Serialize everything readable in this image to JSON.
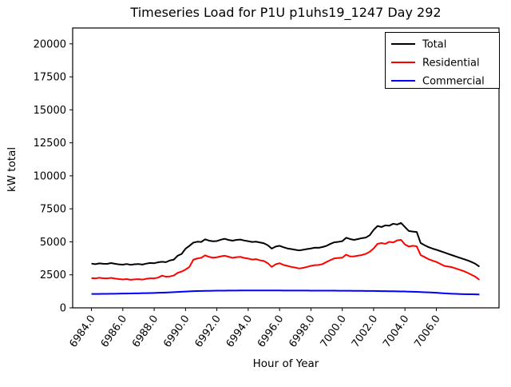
{
  "window": {
    "background": "#ffffff"
  },
  "chart_data": {
    "type": "line",
    "title": "Timeseries Load for P1U p1uhs19_1247  Day 292",
    "xlabel": "Hour of Year",
    "ylabel": "kW total",
    "grid": false,
    "legend_position": "upper right",
    "xlim": [
      6982.8,
      7010.0
    ],
    "ylim": [
      0,
      21200
    ],
    "yticks": [
      0,
      2500,
      5000,
      7500,
      10000,
      12500,
      15000,
      17500,
      20000
    ],
    "xticks": [
      6984,
      6986,
      6988,
      6990,
      6992,
      6994,
      6996,
      6998,
      7000,
      7002,
      7004,
      7006
    ],
    "xtick_labels": [
      "6984.0",
      "6986.0",
      "6988.0",
      "6990.0",
      "6992.0",
      "6994.0",
      "6996.0",
      "6998.0",
      "7000.0",
      "7002.0",
      "7004.0",
      "7006.0"
    ],
    "x_start": 6984.0,
    "x_step": 0.25,
    "series": [
      {
        "name": "Total",
        "color": "#000000",
        "values": [
          3350,
          3310,
          3370,
          3340,
          3330,
          3390,
          3340,
          3290,
          3270,
          3320,
          3260,
          3300,
          3320,
          3280,
          3350,
          3400,
          3380,
          3450,
          3490,
          3460,
          3590,
          3650,
          3950,
          4080,
          4480,
          4700,
          4940,
          5010,
          4990,
          5190,
          5090,
          5040,
          5060,
          5160,
          5230,
          5140,
          5090,
          5150,
          5170,
          5100,
          5050,
          4990,
          5010,
          4950,
          4890,
          4740,
          4490,
          4640,
          4700,
          4590,
          4500,
          4450,
          4400,
          4350,
          4400,
          4450,
          4500,
          4560,
          4550,
          4610,
          4700,
          4850,
          4970,
          5000,
          5050,
          5310,
          5210,
          5150,
          5210,
          5280,
          5320,
          5500,
          5900,
          6200,
          6120,
          6250,
          6220,
          6370,
          6310,
          6430,
          6120,
          5820,
          5780,
          5750,
          4910,
          4750,
          4600,
          4490,
          4400,
          4300,
          4200,
          4090,
          3990,
          3890,
          3790,
          3690,
          3590,
          3470,
          3330,
          3120
        ]
      },
      {
        "name": "Residential",
        "color": "#ff0000",
        "values": [
          2250,
          2230,
          2280,
          2240,
          2230,
          2270,
          2220,
          2180,
          2150,
          2180,
          2130,
          2160,
          2170,
          2140,
          2200,
          2230,
          2230,
          2290,
          2440,
          2360,
          2380,
          2450,
          2650,
          2750,
          2900,
          3100,
          3650,
          3740,
          3790,
          3980,
          3860,
          3800,
          3830,
          3900,
          3950,
          3870,
          3790,
          3840,
          3860,
          3780,
          3730,
          3660,
          3690,
          3600,
          3550,
          3380,
          3100,
          3300,
          3380,
          3250,
          3180,
          3100,
          3050,
          2980,
          3030,
          3100,
          3180,
          3230,
          3250,
          3320,
          3480,
          3620,
          3750,
          3780,
          3800,
          4030,
          3890,
          3900,
          3950,
          4000,
          4090,
          4250,
          4500,
          4850,
          4910,
          4850,
          5000,
          4950,
          5110,
          5150,
          4800,
          4640,
          4700,
          4660,
          4000,
          3850,
          3690,
          3580,
          3480,
          3330,
          3180,
          3130,
          3080,
          2980,
          2880,
          2780,
          2650,
          2500,
          2350,
          2120
        ]
      },
      {
        "name": "Commercial",
        "color": "#0000ff",
        "values": [
          1050,
          1050,
          1055,
          1060,
          1060,
          1065,
          1070,
          1075,
          1080,
          1085,
          1090,
          1095,
          1100,
          1110,
          1115,
          1120,
          1130,
          1140,
          1150,
          1160,
          1175,
          1190,
          1205,
          1220,
          1235,
          1250,
          1262,
          1270,
          1278,
          1285,
          1290,
          1295,
          1300,
          1303,
          1306,
          1308,
          1310,
          1312,
          1314,
          1315,
          1316,
          1317,
          1318,
          1318,
          1318,
          1317,
          1316,
          1315,
          1314,
          1313,
          1312,
          1311,
          1310,
          1309,
          1308,
          1307,
          1306,
          1305,
          1304,
          1303,
          1302,
          1301,
          1300,
          1298,
          1296,
          1294,
          1292,
          1290,
          1288,
          1285,
          1282,
          1279,
          1276,
          1272,
          1268,
          1264,
          1260,
          1255,
          1250,
          1245,
          1238,
          1230,
          1222,
          1214,
          1200,
          1185,
          1170,
          1155,
          1140,
          1120,
          1100,
          1085,
          1070,
          1058,
          1048,
          1040,
          1032,
          1026,
          1020,
          1015
        ]
      }
    ]
  }
}
